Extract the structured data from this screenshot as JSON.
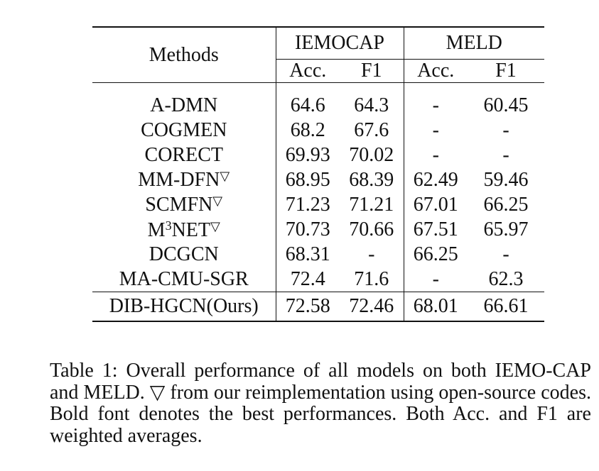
{
  "table": {
    "header": {
      "methods": "Methods",
      "groups": [
        "IEMOCAP",
        "MELD"
      ],
      "metrics": [
        "Acc.",
        "F1",
        "Acc.",
        "F1"
      ]
    },
    "rows": [
      {
        "method": "A-DMN",
        "method_sup": "",
        "iemocap_acc": "64.6",
        "iemocap_f1": "64.3",
        "meld_acc": "-",
        "meld_f1": "60.45"
      },
      {
        "method": "COGMEN",
        "method_sup": "",
        "iemocap_acc": "68.2",
        "iemocap_f1": "67.6",
        "meld_acc": "-",
        "meld_f1": "-"
      },
      {
        "method": "CORECT",
        "method_sup": "",
        "iemocap_acc": "69.93",
        "iemocap_f1": "70.02",
        "meld_acc": "-",
        "meld_f1": "-"
      },
      {
        "method": "MM-DFN",
        "method_sup": "▽",
        "iemocap_acc": "68.95",
        "iemocap_f1": "68.39",
        "meld_acc": "62.49",
        "meld_f1": "59.46"
      },
      {
        "method": "SCMFN",
        "method_sup": "▽",
        "iemocap_acc": "71.23",
        "iemocap_f1": "71.21",
        "meld_acc": "67.01",
        "meld_f1": "66.25"
      },
      {
        "method_prefix": "M",
        "method_prefix_sup": "3",
        "method": "NET",
        "method_sup": "▽",
        "iemocap_acc": "70.73",
        "iemocap_f1": "70.66",
        "meld_acc": "67.51",
        "meld_f1": "65.97"
      },
      {
        "method": "DCGCN",
        "method_sup": "",
        "iemocap_acc": "68.31",
        "iemocap_f1": "-",
        "meld_acc": "66.25",
        "meld_f1": "-"
      },
      {
        "method": "MA-CMU-SGR",
        "method_sup": "",
        "iemocap_acc": "72.4",
        "iemocap_f1": "71.6",
        "meld_acc": "-",
        "meld_f1": "62.3"
      }
    ],
    "ours": {
      "method": "DIB-HGCN(Ours)",
      "iemocap_acc": "72.58",
      "iemocap_f1": "72.46",
      "meld_acc": "68.01",
      "meld_f1": "66.61"
    }
  },
  "caption": "Table 1: Overall performance of all models on both IEMO-CAP and MELD. ▽ from our reimplementation using open-source codes. Bold font denotes the best performances. Both Acc. and F1 are weighted averages."
}
